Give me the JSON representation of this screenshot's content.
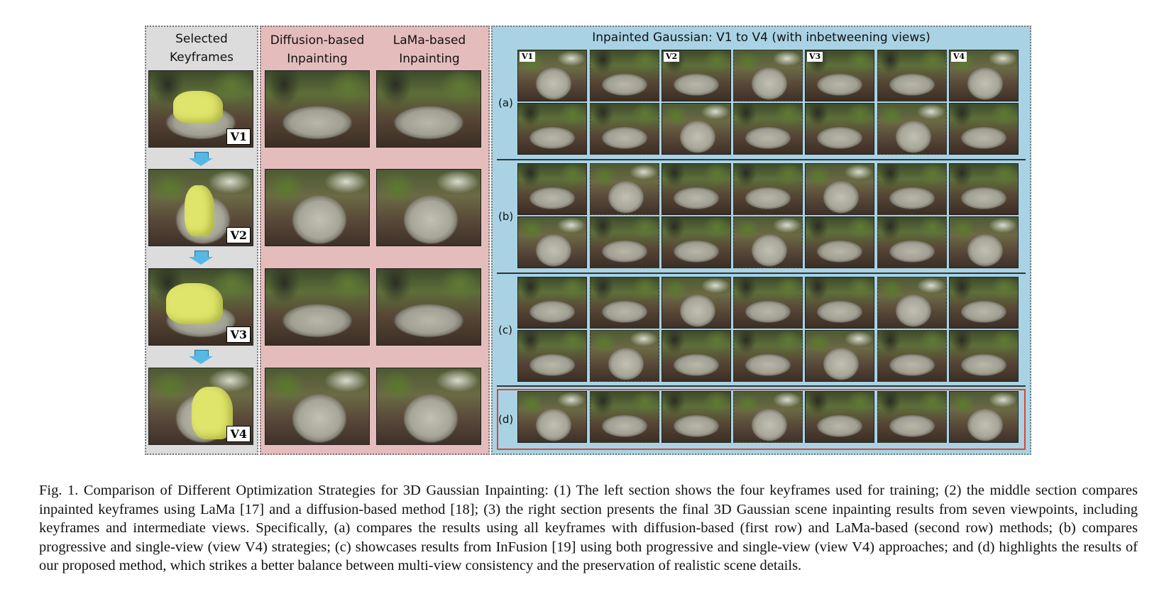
{
  "figure": {
    "left_title_line1": "Selected",
    "left_title_line2": "Keyframes",
    "diffusion_title_line1": "Diffusion-based",
    "diffusion_title_line2": "Inpainting",
    "lama_title_line1": "LaMa-based",
    "lama_title_line2": "Inpainting",
    "right_title": "Inpainted Gaussian: V1 to V4 (with inbetweening views)",
    "keyframe_tags": [
      "V1",
      "V2",
      "V3",
      "V4"
    ],
    "column_tags": [
      "V1",
      "",
      "V2",
      "",
      "V3",
      "",
      "V4"
    ],
    "row_labels": [
      "(a)",
      "(b)",
      "(c)",
      "(d)"
    ]
  },
  "caption": {
    "text": "Fig. 1.  Comparison of Different Optimization Strategies for 3D Gaussian Inpainting: (1) The left section shows the four keyframes used for training; (2) the middle section compares inpainted keyframes using LaMa [17] and a diffusion-based method [18]; (3) the right section presents the final 3D Gaussian scene inpainting results from seven viewpoints, including keyframes and intermediate views. Specifically, (a) compares the results using all keyframes with diffusion-based (first row) and LaMa-based (second row) methods; (b) compares progressive and single-view (view V4) strategies; (c) showcases results from InFusion [19] using both progressive and single-view (view V4) approaches; and (d) highlights the results of our proposed method, which strikes a better balance between multi-view consistency and the preservation of realistic scene details."
  },
  "colors": {
    "left_panel": "#dcdcdc",
    "middle_panel": "#e5bcbc",
    "right_panel": "#a9d3e4",
    "highlight_box": "#d9472f",
    "arrow": "#55b9e6",
    "object_mask": "#dfe46a"
  }
}
